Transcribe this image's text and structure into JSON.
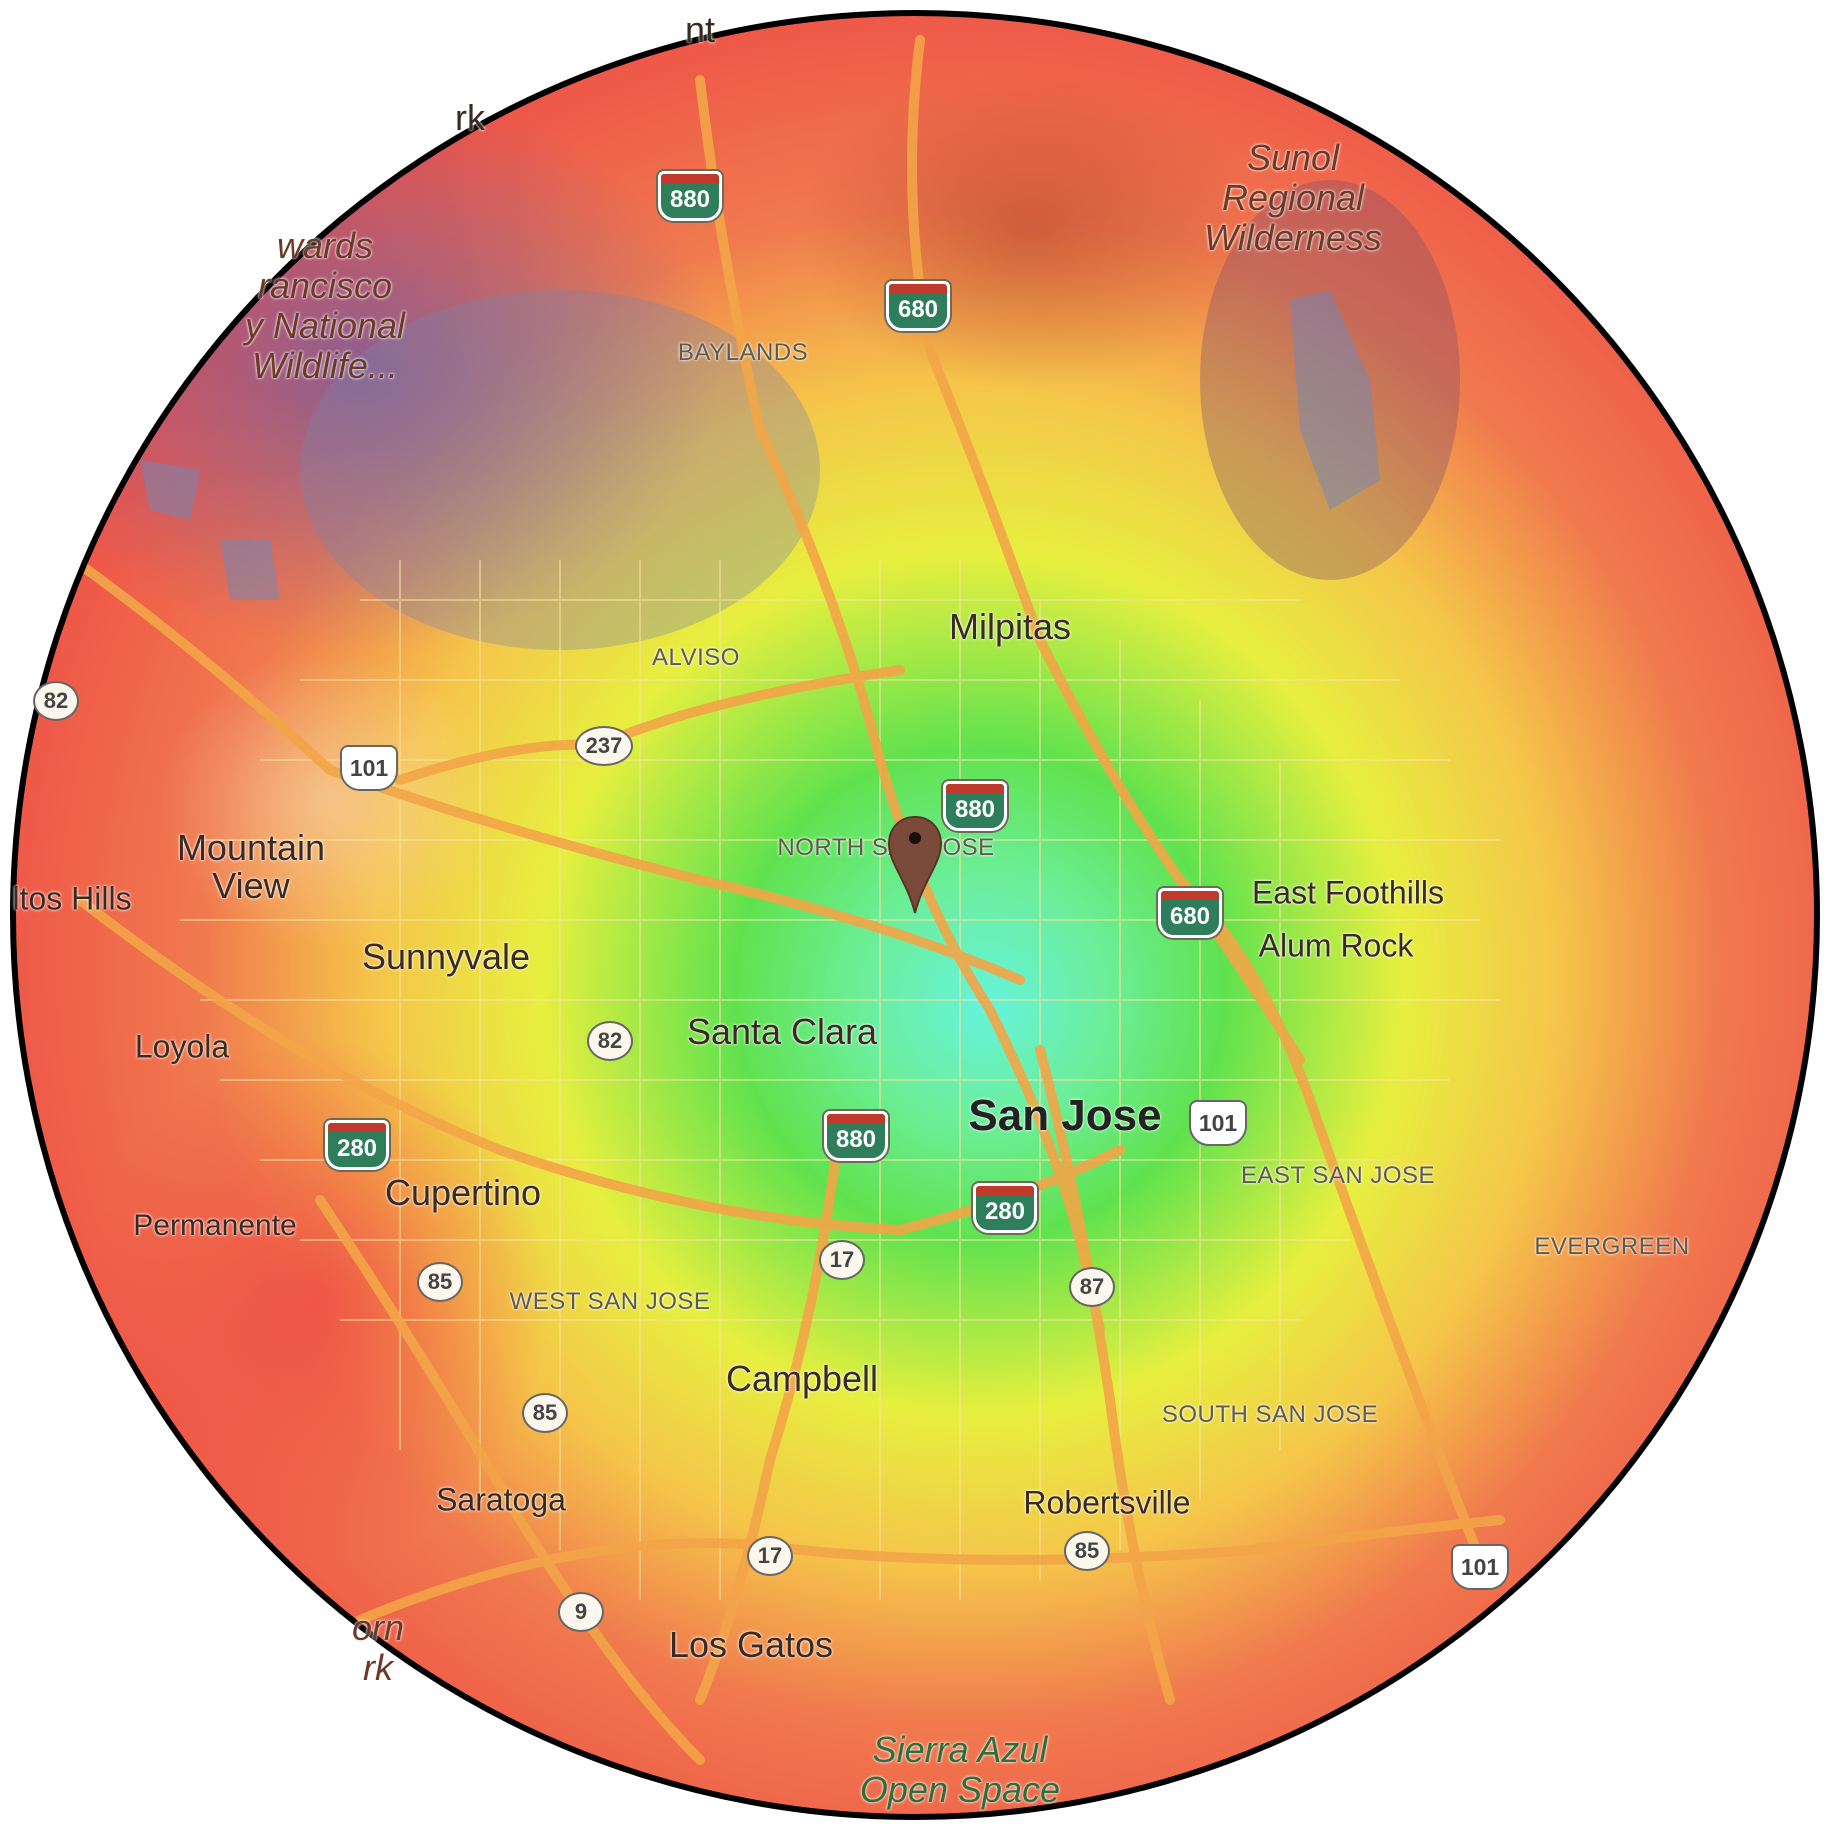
{
  "map": {
    "place_labels": [
      {
        "id": "milpitas",
        "text": "Milpitas",
        "kind": "city"
      },
      {
        "id": "mountain-view",
        "text": "Mountain\nView",
        "kind": "city"
      },
      {
        "id": "los-altos-hills",
        "text": "ltos Hills",
        "kind": "city"
      },
      {
        "id": "sunnyvale",
        "text": "Sunnyvale",
        "kind": "city"
      },
      {
        "id": "loyola",
        "text": "Loyola",
        "kind": "city"
      },
      {
        "id": "santa-clara",
        "text": "Santa Clara",
        "kind": "city"
      },
      {
        "id": "san-jose",
        "text": "San Jose",
        "kind": "city-big"
      },
      {
        "id": "east-foothills",
        "text": "East Foothills",
        "kind": "city"
      },
      {
        "id": "alum-rock",
        "text": "Alum Rock",
        "kind": "city"
      },
      {
        "id": "cupertino",
        "text": "Cupertino",
        "kind": "city"
      },
      {
        "id": "permanente",
        "text": "Permanente",
        "kind": "city"
      },
      {
        "id": "campbell",
        "text": "Campbell",
        "kind": "city"
      },
      {
        "id": "saratoga",
        "text": "Saratoga",
        "kind": "city"
      },
      {
        "id": "robertsville",
        "text": "Robertsville",
        "kind": "city"
      },
      {
        "id": "los-gatos",
        "text": "Los Gatos",
        "kind": "city"
      }
    ],
    "neighborhood_labels": [
      {
        "id": "baylands",
        "text": "BAYLANDS"
      },
      {
        "id": "alviso",
        "text": "ALVISO"
      },
      {
        "id": "north-san-jose",
        "text": "NORTH SAN JOSE"
      },
      {
        "id": "west-san-jose",
        "text": "WEST SAN JOSE"
      },
      {
        "id": "east-san-jose",
        "text": "EAST SAN JOSE"
      },
      {
        "id": "evergreen",
        "text": "EVERGREEN"
      },
      {
        "id": "south-san-jose",
        "text": "SOUTH SAN JOSE"
      }
    ],
    "park_labels": [
      {
        "id": "sunol",
        "text": "Sunol\nRegional\nWilderness",
        "tone": "brown"
      },
      {
        "id": "edwards",
        "text": "wards\nrancisco\ny National\nWildlife...",
        "tone": "brown"
      },
      {
        "id": "sierra-azul",
        "text": "Sierra Azul\nOpen Space",
        "tone": "green"
      },
      {
        "id": "fremont-older",
        "text": "orn\nrk",
        "tone": "brown"
      }
    ],
    "edge_labels": [
      {
        "id": "top-edge",
        "text": "rk"
      },
      {
        "id": "top-edge-2",
        "text": "nt"
      }
    ],
    "shields": [
      {
        "id": "i880-north",
        "type": "interstate",
        "number": "880"
      },
      {
        "id": "i680-north",
        "type": "interstate",
        "number": "680"
      },
      {
        "id": "i880-mid",
        "type": "interstate",
        "number": "880"
      },
      {
        "id": "i680-east",
        "type": "interstate",
        "number": "680"
      },
      {
        "id": "i880-south",
        "type": "interstate",
        "number": "880"
      },
      {
        "id": "i280-west",
        "type": "interstate",
        "number": "280"
      },
      {
        "id": "i280-mid",
        "type": "interstate",
        "number": "280"
      },
      {
        "id": "us101-west",
        "type": "ushwy",
        "number": "101"
      },
      {
        "id": "us101-mid",
        "type": "ushwy",
        "number": "101"
      },
      {
        "id": "us101-south",
        "type": "ushwy",
        "number": "101"
      },
      {
        "id": "sr82-west",
        "type": "state",
        "number": "82"
      },
      {
        "id": "sr82-mid",
        "type": "state",
        "number": "82"
      },
      {
        "id": "sr237",
        "type": "state",
        "number": "237"
      },
      {
        "id": "sr17-north",
        "type": "state",
        "number": "17"
      },
      {
        "id": "sr17-south",
        "type": "state",
        "number": "17"
      },
      {
        "id": "sr87",
        "type": "state",
        "number": "87"
      },
      {
        "id": "sr85-a",
        "type": "state",
        "number": "85"
      },
      {
        "id": "sr85-b",
        "type": "state",
        "number": "85"
      },
      {
        "id": "sr85-c",
        "type": "state",
        "number": "85"
      },
      {
        "id": "sr9",
        "type": "state",
        "number": "9"
      }
    ],
    "marker": {
      "name": "location-pin",
      "color": "#7a4b3a"
    },
    "heatmap_scale": {
      "center_color": "#5ef0d8",
      "near_color": "#55e055",
      "mid_color": "#f4ec3a",
      "far_color": "#ef4a45",
      "water_tint": "#7a5ca0"
    },
    "colors": {
      "road_major": "#f3a548",
      "road_minor": "#f8e4a6",
      "water": "#7d9ec4",
      "frame": "#000000"
    }
  }
}
